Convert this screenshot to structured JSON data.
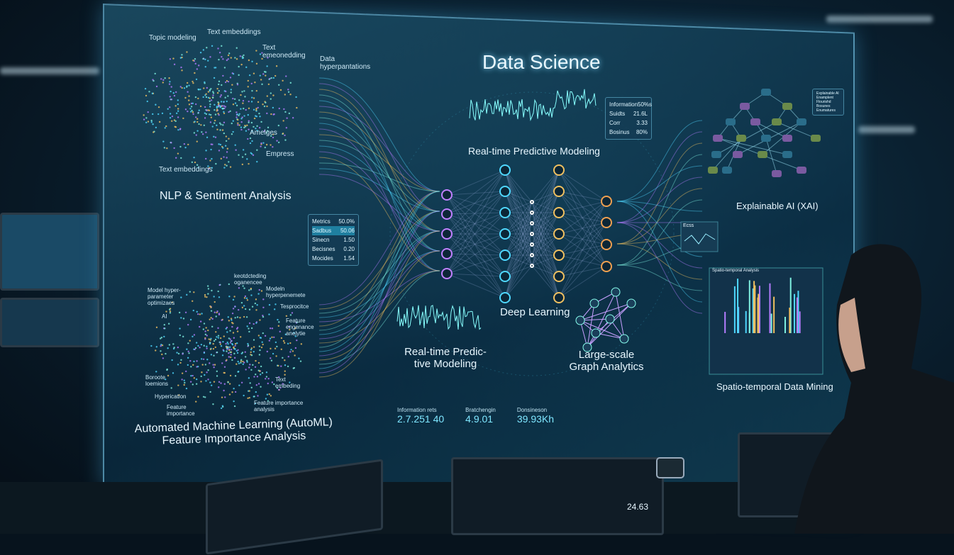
{
  "title": "Data Science",
  "nlp": {
    "labels": [
      "Topic modeling",
      "Text embeddings",
      "Text emeonedding",
      "Amelges",
      "Empress",
      "Text embeddings"
    ],
    "section": "NLP & Sentiment Analysis"
  },
  "data_label": "Data hyperpantations",
  "top_chart_label": "Real-time Predictive Modeling",
  "info_box": {
    "header": [
      "Information",
      "50%s"
    ],
    "rows": [
      [
        "Suidts",
        "21.6L"
      ],
      [
        "Corr",
        "3.33"
      ],
      [
        "Bosinus",
        "80%"
      ]
    ]
  },
  "metrics": [
    [
      "Metrics",
      "50.0%"
    ],
    [
      "Sadbus",
      "50.06"
    ],
    [
      "Sinecn",
      "1.50"
    ],
    [
      "Becisnes",
      "0.20"
    ],
    [
      "Mocides",
      "1.54"
    ]
  ],
  "deep_learning": "Deep Learning",
  "bottom_chart_label": "Real-time Predic-tive Modeling",
  "graph_label": "Large-scale Graph Analytics",
  "xai": {
    "label": "Explainable AI (XAI)",
    "legend": [
      "Explainable AI",
      "Enamplent",
      "Flourishd",
      "Bosunes",
      "Enumatures"
    ]
  },
  "small_chart_label": "Ecss",
  "spatial": {
    "panel_title": "Spatio-temporal Analysis",
    "label": "Spatio-temporal Data Mining"
  },
  "automl": {
    "labels": [
      "keotdcteding oganencee",
      "Model hyper-parameter optimizaes",
      "Modeln hyperpenemete",
      "AI",
      "Tesprocitce",
      "Feature engenance anelytie",
      "Boroote loemions",
      "Text embeding",
      "Hyperication",
      "Feature importance",
      "Feature importance analysis"
    ],
    "section": "Automated Machine Learning (AutoML)\nFeature Importance Analysis"
  },
  "strip": [
    {
      "label": "Information rets",
      "value": "2.7.251 40"
    },
    {
      "label": "Bratchengin",
      "value": "4.9.01"
    },
    {
      "label": "Donsineson",
      "value": "39.93Kh"
    }
  ],
  "monitor_value": "24.63",
  "colors": {
    "accent": "#4fd8ff",
    "purple": "#b47cff",
    "gold": "#f0c060"
  }
}
